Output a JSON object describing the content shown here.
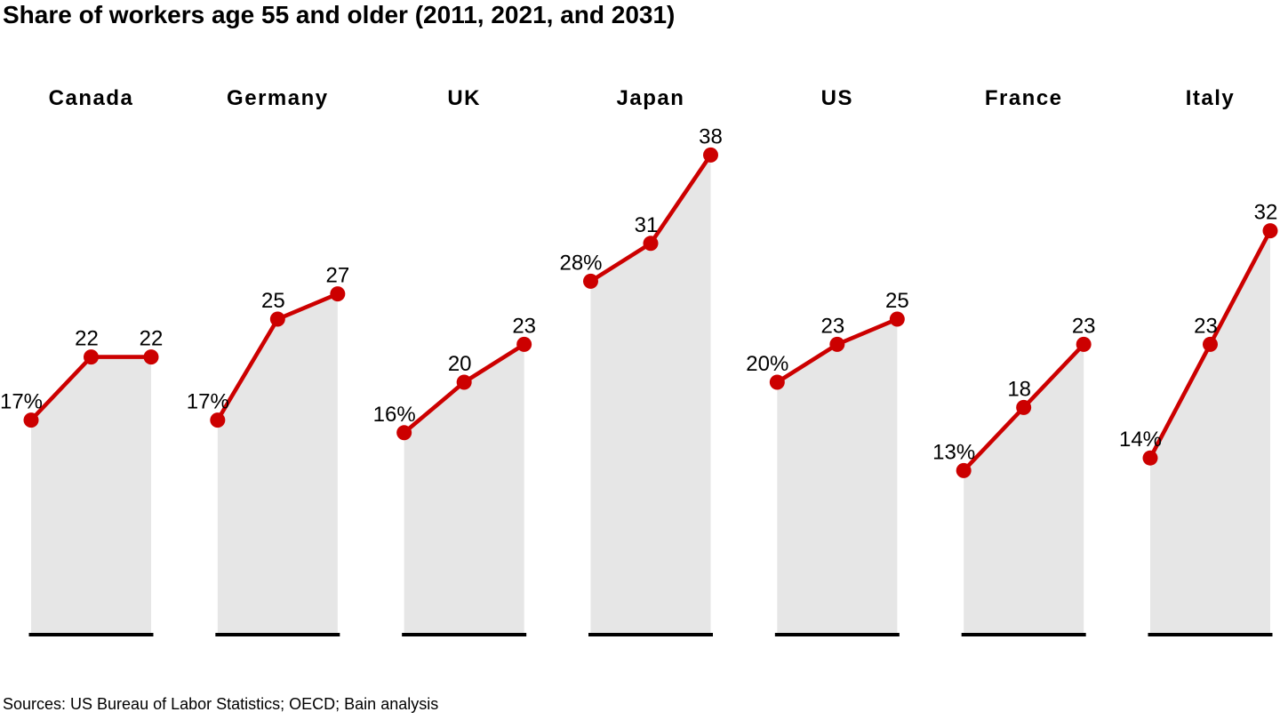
{
  "title": "Share of workers age 55 and older (2011, 2021, and 2031)",
  "source": "Sources: US Bureau of Labor Statistics; OECD; Bain analysis",
  "chart_data": {
    "type": "area",
    "subtype": "small-multiples-line-with-markers-over-shaded-area",
    "title": "Share of workers age 55 and older (2011, 2021, and 2031)",
    "x": [
      2011,
      2021,
      2031
    ],
    "unit": "percent",
    "series": [
      {
        "name": "Canada",
        "values": [
          17,
          22,
          22
        ]
      },
      {
        "name": "Germany",
        "values": [
          17,
          25,
          27
        ]
      },
      {
        "name": "UK",
        "values": [
          16,
          20,
          23
        ]
      },
      {
        "name": "Japan",
        "values": [
          28,
          31,
          38
        ]
      },
      {
        "name": "US",
        "values": [
          20,
          23,
          25
        ]
      },
      {
        "name": "France",
        "values": [
          13,
          18,
          23
        ]
      },
      {
        "name": "Italy",
        "values": [
          14,
          23,
          32
        ]
      }
    ],
    "data_label_format": "first point shows number with % sign, later points show number only",
    "ylim": [
      0,
      40
    ],
    "grid": false,
    "legend": false,
    "colors": {
      "line": "#cc0000",
      "marker": "#cc0000",
      "area_fill": "#e6e6e6",
      "baseline": "#000000",
      "text": "#000000",
      "background": "#ffffff"
    }
  }
}
